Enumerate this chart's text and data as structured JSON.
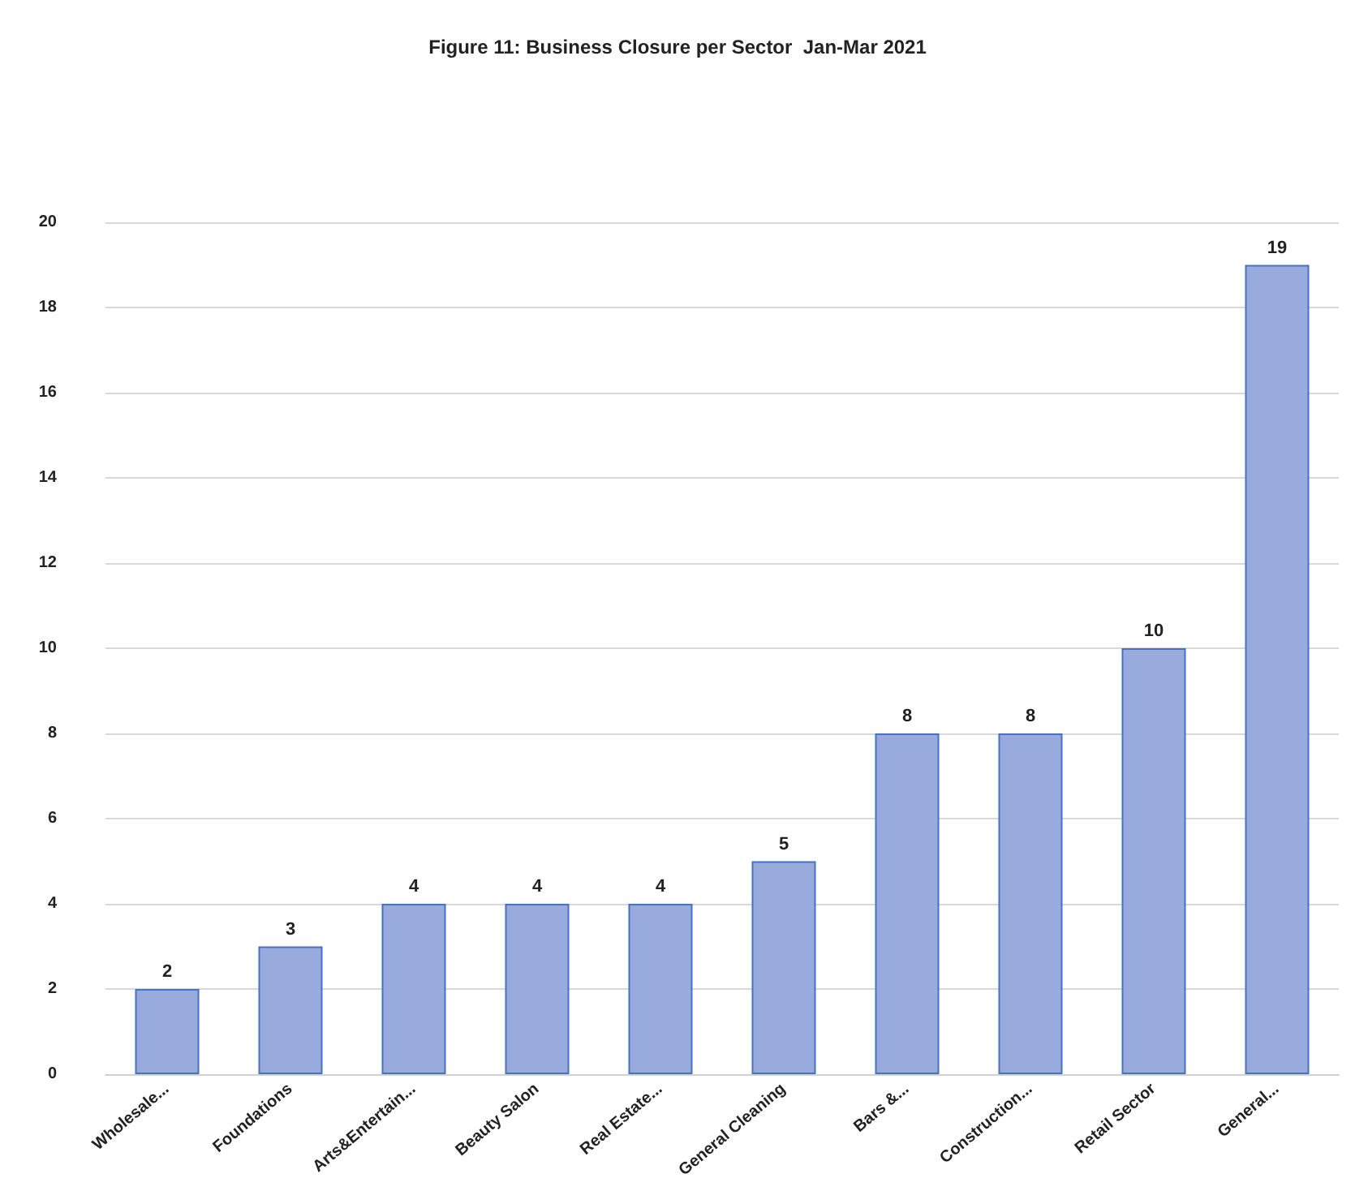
{
  "chart_data": {
    "type": "bar",
    "title": "Figure 11: Business Closure per Sector  Jan-Mar 2021",
    "categories": [
      "Wholesale...",
      "Foundations",
      "Arts&Entertain...",
      "Beauty Salon",
      "Real Estate...",
      "General Cleaning",
      "Bars &...",
      "Construction...",
      "Retail Sector",
      "General..."
    ],
    "values": [
      2,
      3,
      4,
      4,
      4,
      5,
      8,
      8,
      10,
      19
    ],
    "color": "#99aadc",
    "ylim": [
      0,
      20
    ],
    "yticks": [
      0,
      2,
      4,
      6,
      8,
      10,
      12,
      14,
      16,
      18,
      20
    ],
    "grid": "y",
    "data_labels": true
  }
}
